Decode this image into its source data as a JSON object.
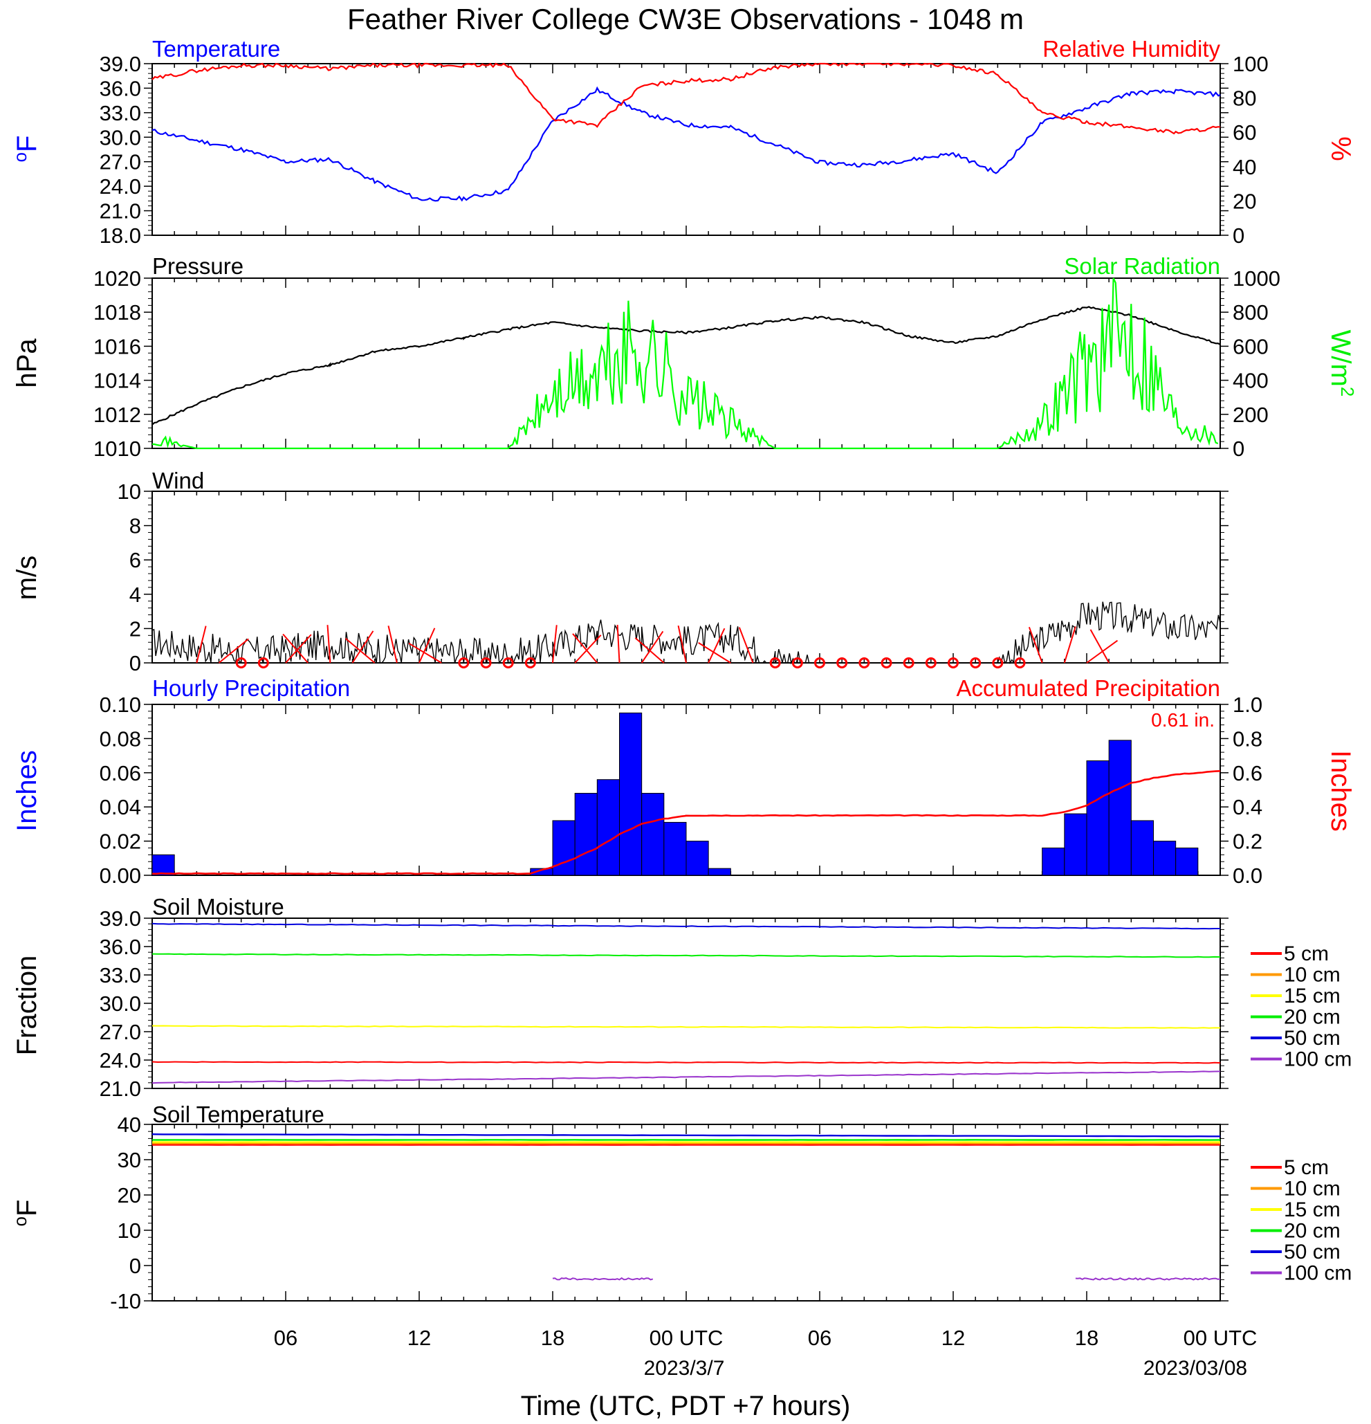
{
  "page": {
    "title": "Feather River College CW3E Observations - 1048 m",
    "xaxis_title": "Time (UTC, PDT +7 hours)",
    "x_tick_labels": [
      "06",
      "12",
      "18",
      "00 UTC",
      "06",
      "12",
      "18",
      "00 UTC"
    ],
    "date_labels": [
      "2023/3/7",
      "2023/03/08"
    ]
  },
  "colors": {
    "temperature": "#0000ff",
    "humidity": "#ff0000",
    "pressure": "#000000",
    "solar": "#00ff00",
    "wind": "#000000",
    "barb": "#ff0000",
    "hourly_precip": "#0000ff",
    "accum_precip": "#ff0000",
    "depth_5": "#ff0000",
    "depth_10": "#ff9900",
    "depth_15": "#ffff00",
    "depth_20": "#00ee00",
    "depth_50": "#0000dd",
    "depth_100": "#9933cc"
  },
  "chart_data": [
    {
      "type": "line",
      "panel": "temperature_humidity",
      "left_title": "Temperature",
      "right_title": "Relative Humidity",
      "ylabel_left": "oF",
      "ylabel_right": "%",
      "ylim_left": [
        18,
        39
      ],
      "ylim_right": [
        0,
        100
      ],
      "yticks_left": [
        "39.0",
        "36.0",
        "33.0",
        "30.0",
        "27.0",
        "24.0",
        "21.0",
        "18.0"
      ],
      "yticks_right": [
        "100",
        "80",
        "60",
        "40",
        "20",
        "0"
      ],
      "x_hours": [
        0,
        2,
        4,
        6,
        8,
        10,
        12,
        14,
        16,
        18,
        20,
        22,
        24,
        26,
        28,
        30,
        32,
        34,
        36,
        38,
        40,
        42,
        44,
        46,
        48
      ],
      "series": [
        {
          "name": "Temperature",
          "axis": "left",
          "values": [
            30.8,
            29.6,
            28.5,
            27.0,
            27.3,
            24.6,
            22.4,
            22.5,
            23.5,
            32.0,
            35.8,
            33.0,
            31.5,
            31.2,
            29.1,
            26.9,
            26.6,
            27.2,
            28.0,
            25.6,
            31.8,
            33.6,
            35.4,
            35.6,
            35.2
          ]
        },
        {
          "name": "Relative Humidity",
          "axis": "left_unused",
          "axis_ref": "right",
          "values": [
            91,
            96,
            99,
            99,
            97,
            99,
            99,
            99,
            99,
            68,
            64,
            87,
            90,
            91,
            98,
            100,
            100,
            100,
            99,
            94,
            71,
            66,
            63,
            60,
            63
          ]
        }
      ]
    },
    {
      "type": "line",
      "panel": "pressure_solar",
      "left_title": "Pressure",
      "right_title": "Solar Radiation",
      "ylabel_left": "hPa",
      "ylabel_right": "W/m2",
      "ylim_left": [
        1010,
        1020
      ],
      "ylim_right": [
        0,
        1000
      ],
      "yticks_left": [
        "1020",
        "1018",
        "1016",
        "1014",
        "1012",
        "1010"
      ],
      "yticks_right": [
        "1000",
        "800",
        "600",
        "400",
        "200",
        "0"
      ],
      "x_hours": [
        0,
        2,
        4,
        6,
        8,
        10,
        12,
        14,
        16,
        18,
        20,
        22,
        24,
        26,
        28,
        30,
        32,
        34,
        36,
        38,
        40,
        42,
        44,
        46,
        48
      ],
      "series": [
        {
          "name": "Pressure",
          "axis": "left",
          "values": [
            1011.4,
            1012.6,
            1013.6,
            1014.4,
            1014.9,
            1015.7,
            1016.0,
            1016.5,
            1017.0,
            1017.4,
            1017.1,
            1016.9,
            1016.8,
            1017.1,
            1017.5,
            1017.7,
            1017.4,
            1016.6,
            1016.2,
            1016.6,
            1017.6,
            1018.3,
            1017.8,
            1016.9,
            1016.1
          ]
        },
        {
          "name": "Solar Radiation",
          "axis": "right",
          "values": [
            60,
            0,
            0,
            0,
            0,
            0,
            0,
            0,
            0,
            300,
            420,
            600,
            300,
            150,
            0,
            0,
            0,
            0,
            0,
            0,
            150,
            500,
            700,
            180,
            40
          ]
        }
      ]
    },
    {
      "type": "line",
      "panel": "wind",
      "left_title": "Wind",
      "ylabel_left": "m/s",
      "ylim_left": [
        0,
        10
      ],
      "yticks_left": [
        "10",
        "8",
        "6",
        "4",
        "2",
        "0"
      ],
      "x_hours": [
        0,
        2,
        4,
        6,
        8,
        10,
        12,
        14,
        16,
        18,
        20,
        22,
        24,
        26,
        28,
        30,
        32,
        34,
        36,
        38,
        40,
        42,
        44,
        46,
        48
      ],
      "series": [
        {
          "name": "Wind",
          "axis": "left",
          "values": [
            1.2,
            0.9,
            0.6,
            0.8,
            1.1,
            0.8,
            0.7,
            0.6,
            0.5,
            0.9,
            1.8,
            1.5,
            1.3,
            1.5,
            0.2,
            0.0,
            0.0,
            0.0,
            0.0,
            0.0,
            1.4,
            2.8,
            2.6,
            2.0,
            1.9
          ]
        }
      ]
    },
    {
      "type": "bar",
      "panel": "precipitation",
      "left_title": "Hourly Precipitation",
      "right_title": "Accumulated Precipitation",
      "total_label": "0.61 in.",
      "ylabel_left": "Inches",
      "ylabel_right": "Inches",
      "ylim_left": [
        0,
        0.1
      ],
      "ylim_right": [
        0,
        1.0
      ],
      "yticks_left": [
        "0.10",
        "0.08",
        "0.06",
        "0.04",
        "0.02",
        "0.00"
      ],
      "yticks_right": [
        "1.0",
        "0.8",
        "0.6",
        "0.4",
        "0.2",
        "0.0"
      ],
      "hourly_bars": {
        "start_hour": [
          0,
          17,
          18,
          19,
          20,
          21,
          22,
          23,
          24,
          25,
          26,
          40,
          41,
          42,
          43,
          44,
          45,
          46,
          47
        ],
        "values": [
          0.012,
          0.004,
          0.032,
          0.048,
          0.056,
          0.095,
          0.048,
          0.031,
          0.02,
          0.004,
          0.0,
          0.016,
          0.036,
          0.067,
          0.079,
          0.032,
          0.02,
          0.016,
          0.0
        ]
      },
      "accumulated": {
        "x_hours": [
          0,
          17,
          18,
          19,
          20,
          21,
          22,
          23,
          24,
          25,
          40,
          41,
          42,
          43,
          44,
          45,
          46,
          47,
          48
        ],
        "values": [
          0.01,
          0.01,
          0.05,
          0.1,
          0.16,
          0.24,
          0.3,
          0.33,
          0.35,
          0.35,
          0.35,
          0.37,
          0.41,
          0.48,
          0.54,
          0.57,
          0.59,
          0.6,
          0.61
        ]
      }
    },
    {
      "type": "line",
      "panel": "soil_moisture",
      "left_title": "Soil Moisture",
      "ylabel_left": "Fraction",
      "ylim_left": [
        21,
        39
      ],
      "yticks_left": [
        "39.0",
        "36.0",
        "33.0",
        "30.0",
        "27.0",
        "24.0",
        "21.0"
      ],
      "x_hours": [
        0,
        48
      ],
      "series": [
        {
          "name": "5 cm",
          "axis": "left",
          "values": [
            23.8,
            23.7
          ]
        },
        {
          "name": "10 cm",
          "axis": "left",
          "values": [
            null,
            null
          ]
        },
        {
          "name": "15 cm",
          "axis": "left",
          "values": [
            27.6,
            27.4
          ]
        },
        {
          "name": "20 cm",
          "axis": "left",
          "values": [
            35.2,
            34.9
          ]
        },
        {
          "name": "50 cm",
          "axis": "left",
          "values": [
            38.4,
            37.9
          ]
        },
        {
          "name": "100 cm",
          "axis": "left",
          "values": [
            21.6,
            22.8
          ]
        }
      ]
    },
    {
      "type": "line",
      "panel": "soil_temperature",
      "left_title": "Soil Temperature",
      "ylabel_left": "oF",
      "ylim_left": [
        -10,
        40
      ],
      "yticks_left": [
        "40",
        "30",
        "20",
        "10",
        "0",
        "-10"
      ],
      "x_hours": [
        0,
        48
      ],
      "series": [
        {
          "name": "5 cm",
          "axis": "left",
          "values": [
            34.2,
            34.2
          ]
        },
        {
          "name": "10 cm",
          "axis": "left",
          "values": [
            34.6,
            34.6
          ]
        },
        {
          "name": "15 cm",
          "axis": "left",
          "values": [
            35.0,
            35.0
          ]
        },
        {
          "name": "20 cm",
          "axis": "left",
          "values": [
            35.6,
            35.6
          ]
        },
        {
          "name": "50 cm",
          "axis": "left",
          "values": [
            37.2,
            36.6
          ]
        },
        {
          "name": "100 cm",
          "axis": "left",
          "segments": [
            [
              18,
              22.5,
              -3.8
            ],
            [
              41.5,
              48,
              -3.8
            ]
          ]
        }
      ]
    }
  ],
  "legend": {
    "labels": [
      "5 cm",
      "10 cm",
      "15 cm",
      "20 cm",
      "50 cm",
      "100 cm"
    ]
  }
}
